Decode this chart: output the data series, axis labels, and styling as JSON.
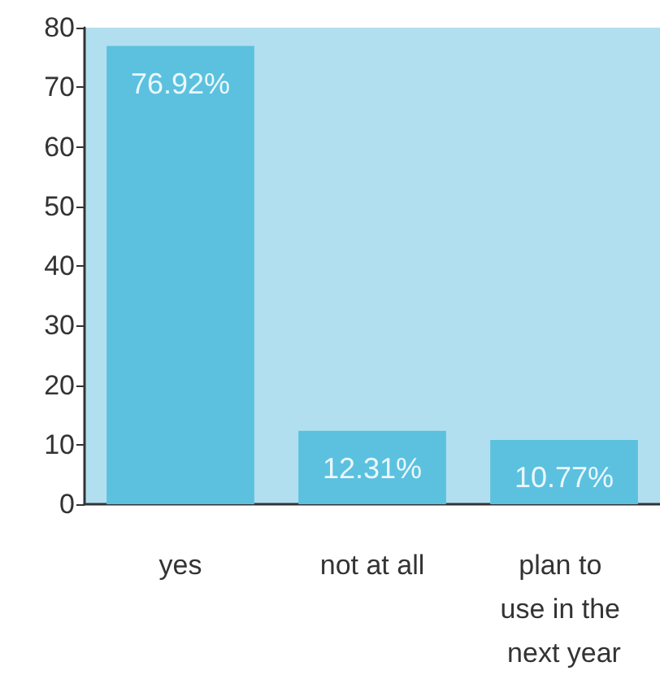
{
  "chart_data": {
    "type": "bar",
    "categories": [
      "yes",
      "not at all",
      "plan to use in the next year"
    ],
    "values": [
      76.92,
      12.31,
      10.77
    ],
    "color": "#5bc1df",
    "ylim": [
      0,
      80
    ],
    "yticks": [
      0,
      10,
      20,
      30,
      40,
      50,
      60,
      70,
      80
    ],
    "grid": false,
    "value_labels": [
      "76.92%",
      "12.31%",
      "10.77%"
    ]
  }
}
